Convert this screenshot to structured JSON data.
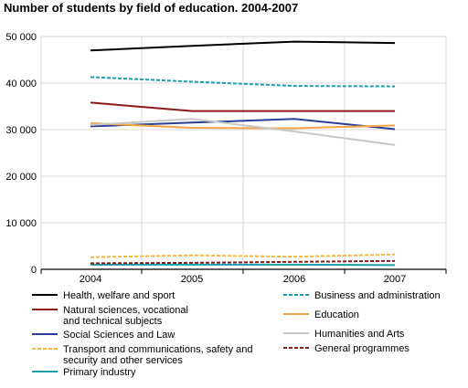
{
  "chart_data": {
    "type": "line",
    "title": "Number of students by field of education. 2004-2007",
    "xlabel": "",
    "ylabel": "",
    "x": [
      "2004",
      "2005",
      "2006",
      "2007"
    ],
    "ylim": [
      0,
      50000
    ],
    "yticks": [
      "0",
      "10 000",
      "20 000",
      "30 000",
      "40 000",
      "50 000"
    ],
    "grid": "horizontal",
    "legend_position": "bottom",
    "series": [
      {
        "name": "Health, welfare and sport",
        "color": "#000000",
        "dash": "solid",
        "values": [
          47000,
          48000,
          48900,
          48600
        ]
      },
      {
        "name": "Natural sciences, vocational and technical subjects",
        "label_lines": [
          "Natural sciences, vocational",
          "and technical subjects"
        ],
        "color": "#8b1a1a",
        "dash": "solid",
        "values": [
          35800,
          34000,
          34000,
          34000
        ]
      },
      {
        "name": "Social Sciences and Law",
        "color": "#2a3f96",
        "dash": "solid",
        "values": [
          30700,
          31500,
          32300,
          30100
        ]
      },
      {
        "name": "Transport and communications, safety and security and other services",
        "label_lines": [
          "Transport and communications, safety and",
          "security and other services"
        ],
        "color": "#f5b942",
        "dash": "dashed",
        "values": [
          2600,
          3000,
          2700,
          3200
        ]
      },
      {
        "name": "Primary industry",
        "color": "#1a9fa8",
        "dash": "solid",
        "values": [
          1000,
          1000,
          1000,
          900
        ]
      },
      {
        "name": "Business and administration",
        "color": "#1a9fa8",
        "dash": "dashed",
        "values": [
          41300,
          40300,
          39400,
          39300
        ]
      },
      {
        "name": "Education",
        "color": "#f5a445",
        "dash": "solid",
        "values": [
          31400,
          30400,
          30300,
          30900
        ]
      },
      {
        "name": "Humanities and Arts",
        "color": "#c8c8c8",
        "dash": "solid",
        "values": [
          31000,
          32300,
          29600,
          26700
        ]
      },
      {
        "name": "General programmes",
        "color": "#8b1a1a",
        "dash": "dashed",
        "values": [
          1300,
          1400,
          1600,
          1800
        ]
      }
    ]
  }
}
